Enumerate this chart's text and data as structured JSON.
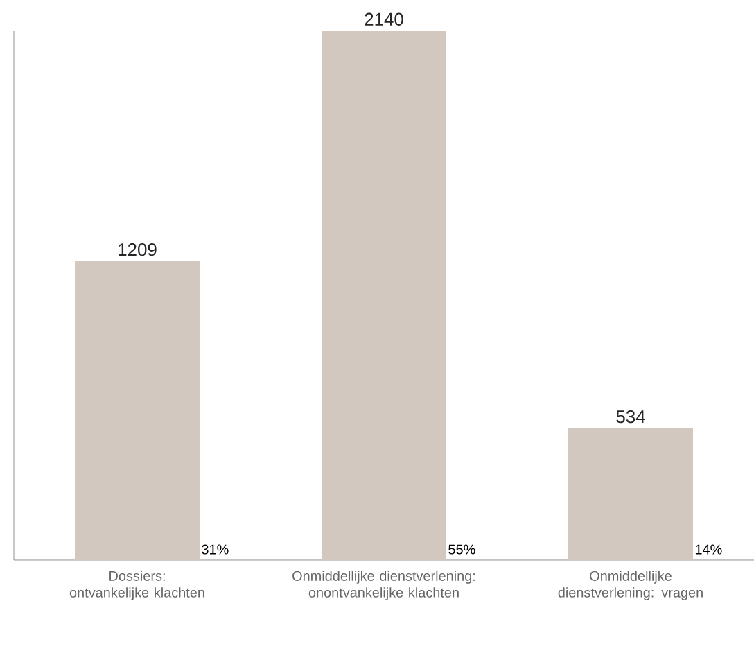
{
  "chart_data": {
    "type": "bar",
    "categories": [
      "Dossiers: ontvankelijke klachten",
      "Onmiddellijke dienstverlening: onontvankelijke klachten",
      "Onmiddellijke dienstverlening: vragen"
    ],
    "values": [
      1209,
      2140,
      534
    ],
    "color": "#d3c8c0",
    "data_labels": true,
    "annotations": [
      "31%",
      "55%",
      "14%"
    ]
  }
}
